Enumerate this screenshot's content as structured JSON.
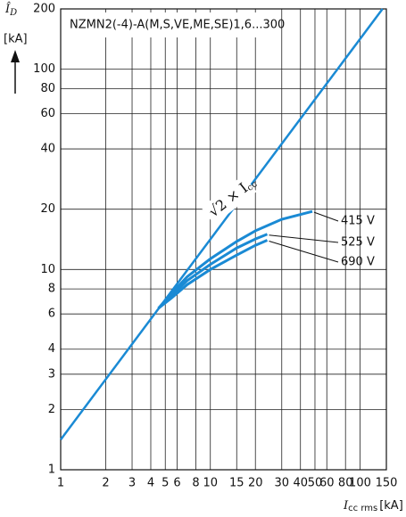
{
  "chart_data": {
    "type": "line",
    "title": "NZMN2(-4)-A(M,S,VE,ME,SE)1,6...300",
    "y_label": {
      "symbol": "Î",
      "sub": "D",
      "unit": "[kA]"
    },
    "x_label": {
      "symbol": "I",
      "sub": "cc rms",
      "unit": "[kA]"
    },
    "peak_label": {
      "text": "√2 × I",
      "sub": "cc"
    },
    "xlog": true,
    "ylog": true,
    "grid": true,
    "xlim": [
      1,
      150
    ],
    "ylim": [
      1,
      200
    ],
    "xticks": [
      1,
      2,
      3,
      4,
      5,
      6,
      8,
      10,
      15,
      20,
      30,
      40,
      50,
      60,
      80,
      100,
      150
    ],
    "yticks": [
      1,
      2,
      3,
      4,
      6,
      8,
      10,
      20,
      40,
      60,
      80,
      100,
      200
    ],
    "series": [
      {
        "name": "√2 × Icc",
        "color": "#1a8ad4",
        "x": [
          1,
          141.4
        ],
        "values": [
          1.414,
          200
        ]
      },
      {
        "name": "415 V",
        "color": "#1a8ad4",
        "x": [
          4.5,
          5.5,
          7,
          10,
          15,
          20,
          30,
          48
        ],
        "values": [
          6.4,
          7.6,
          9.2,
          11.3,
          13.8,
          15.6,
          17.8,
          19.5
        ]
      },
      {
        "name": "525 V",
        "color": "#1a8ad4",
        "x": [
          4.5,
          5.5,
          7,
          10,
          15,
          20,
          24
        ],
        "values": [
          6.4,
          7.4,
          8.8,
          10.6,
          12.8,
          14.2,
          15
        ]
      },
      {
        "name": "690 V",
        "color": "#1a8ad4",
        "x": [
          4.5,
          5.5,
          7,
          10,
          15,
          20,
          24
        ],
        "values": [
          6.4,
          7.2,
          8.4,
          10,
          11.8,
          13.2,
          14
        ]
      }
    ]
  }
}
